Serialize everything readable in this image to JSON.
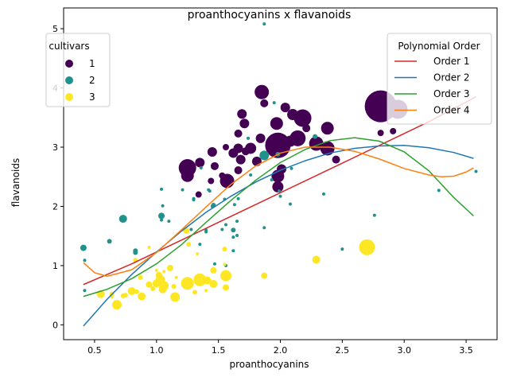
{
  "chart_data": {
    "type": "scatter",
    "title": "proanthocyanins x flavanoids",
    "xlabel": "proanthocyanins",
    "ylabel": "flavanoids",
    "xlim": [
      0.25,
      3.75
    ],
    "ylim": [
      -0.25,
      5.35
    ],
    "xticks": [
      "0.5",
      "1.0",
      "1.5",
      "2.0",
      "2.5",
      "3.0",
      "3.5"
    ],
    "yticks": [
      "0",
      "1",
      "2",
      "3",
      "4",
      "5"
    ],
    "grid": false,
    "hue_legend": {
      "title": "cultivars",
      "placement": "top-left",
      "entries": [
        {
          "label": "1",
          "color": "#440154"
        },
        {
          "label": "2",
          "color": "#21918c"
        },
        {
          "label": "3",
          "color": "#fde725"
        }
      ]
    },
    "fit_legend": {
      "title": "Polynomial Order",
      "placement": "top-right",
      "entries": [
        {
          "label": "Order 1",
          "color": "#d62728"
        },
        {
          "label": "Order 2",
          "color": "#1f77b4"
        },
        {
          "label": "Order 3",
          "color": "#2ca02c"
        },
        {
          "label": "Order 4",
          "color": "#ff7f0e"
        }
      ]
    },
    "fit_lines": [
      {
        "name": "Order 1",
        "x": [
          0.41,
          0.8,
          1.2,
          1.6,
          2.0,
          2.4,
          2.8,
          3.2,
          3.58
        ],
        "y": [
          0.68,
          1.03,
          1.43,
          1.83,
          2.23,
          2.63,
          3.03,
          3.43,
          3.85
        ]
      },
      {
        "name": "Order 2",
        "x": [
          0.41,
          0.6,
          0.8,
          1.0,
          1.2,
          1.4,
          1.6,
          1.8,
          2.0,
          2.2,
          2.4,
          2.6,
          2.8,
          3.0,
          3.2,
          3.4,
          3.56
        ],
        "y": [
          -0.02,
          0.43,
          0.85,
          1.23,
          1.58,
          1.9,
          2.17,
          2.41,
          2.61,
          2.77,
          2.9,
          2.98,
          3.02,
          3.03,
          2.99,
          2.91,
          2.81
        ]
      },
      {
        "name": "Order 3",
        "x": [
          0.41,
          0.6,
          0.8,
          1.0,
          1.2,
          1.4,
          1.6,
          1.8,
          2.0,
          2.2,
          2.4,
          2.6,
          2.8,
          3.0,
          3.2,
          3.4,
          3.56
        ],
        "y": [
          0.48,
          0.6,
          0.78,
          1.03,
          1.35,
          1.73,
          2.1,
          2.44,
          2.74,
          2.96,
          3.11,
          3.16,
          3.1,
          2.92,
          2.6,
          2.15,
          1.84
        ]
      },
      {
        "name": "Order 4",
        "x": [
          0.41,
          0.5,
          0.6,
          0.8,
          1.0,
          1.2,
          1.4,
          1.6,
          1.8,
          2.0,
          2.2,
          2.4,
          2.6,
          2.8,
          3.0,
          3.2,
          3.3,
          3.4,
          3.5,
          3.56
        ],
        "y": [
          1.05,
          0.88,
          0.82,
          0.93,
          1.22,
          1.6,
          1.99,
          2.37,
          2.68,
          2.9,
          3.0,
          3.0,
          2.93,
          2.8,
          2.64,
          2.53,
          2.5,
          2.51,
          2.58,
          2.65
        ]
      }
    ],
    "series": [
      {
        "name": "1",
        "color": "#440154",
        "points": [
          [
            2.81,
            3.69,
            20
          ],
          [
            2.95,
            3.64,
            12
          ],
          [
            1.85,
            3.93,
            9
          ],
          [
            2.18,
            3.49,
            11
          ],
          [
            2.14,
            3.15,
            10
          ],
          [
            2.29,
            3.06,
            9
          ],
          [
            2.38,
            2.98,
            9
          ],
          [
            1.97,
            3.4,
            8
          ],
          [
            1.98,
            3.03,
            16
          ],
          [
            2.08,
            3.1,
            7
          ],
          [
            2.1,
            3.55,
            7
          ],
          [
            1.69,
            3.56,
            6
          ],
          [
            1.71,
            3.4,
            6
          ],
          [
            1.66,
            3.23,
            5
          ],
          [
            1.76,
            2.98,
            7
          ],
          [
            1.84,
            3.15,
            6
          ],
          [
            2.04,
            3.67,
            6
          ],
          [
            2.38,
            3.32,
            8
          ],
          [
            1.57,
            2.43,
            9
          ],
          [
            1.25,
            2.65,
            11
          ],
          [
            1.25,
            2.52,
            8
          ],
          [
            1.35,
            2.74,
            6
          ],
          [
            1.45,
            2.92,
            6
          ],
          [
            1.47,
            2.68,
            5
          ],
          [
            1.62,
            2.9,
            6
          ],
          [
            1.66,
            2.98,
            6
          ],
          [
            1.68,
            2.79,
            6
          ],
          [
            1.81,
            2.76,
            6
          ],
          [
            1.98,
            2.51,
            8
          ],
          [
            1.98,
            2.33,
            7
          ],
          [
            2.01,
            2.63,
            6
          ],
          [
            2.45,
            2.79,
            5
          ],
          [
            2.81,
            3.24,
            4
          ],
          [
            2.91,
            3.27,
            4
          ],
          [
            1.34,
            2.2,
            4
          ],
          [
            1.44,
            2.43,
            4
          ],
          [
            1.53,
            2.52,
            4
          ],
          [
            1.66,
            2.61,
            5
          ],
          [
            1.87,
            3.74,
            5
          ],
          [
            1.72,
            2.93,
            5
          ],
          [
            1.56,
            3.0,
            4
          ],
          [
            2.21,
            3.32,
            5
          ]
        ]
      },
      {
        "name": "2",
        "color": "#21918c",
        "points": [
          [
            1.87,
            2.86,
            6
          ],
          [
            0.73,
            1.79,
            5
          ],
          [
            1.04,
            1.84,
            4
          ],
          [
            0.41,
            1.3,
            4
          ],
          [
            1.46,
            2.02,
            3
          ],
          [
            1.21,
            2.28,
            2
          ],
          [
            0.62,
            1.41,
            3
          ],
          [
            1.87,
            5.08,
            2
          ],
          [
            1.3,
            2.13,
            2
          ],
          [
            1.62,
            1.6,
            3
          ],
          [
            1.62,
            1.48,
            2
          ],
          [
            1.98,
            2.88,
            3
          ],
          [
            2.28,
            3.18,
            3
          ],
          [
            2.09,
            2.64,
            2
          ],
          [
            1.35,
            1.36,
            2
          ],
          [
            1.45,
            2.0,
            2
          ],
          [
            1.65,
            1.75,
            2
          ],
          [
            0.83,
            1.22,
            3
          ],
          [
            1.56,
            1.69,
            2
          ],
          [
            1.1,
            1.75,
            2
          ],
          [
            1.42,
            2.28,
            2
          ],
          [
            2.76,
            1.85,
            2
          ],
          [
            1.74,
            3.15,
            2
          ],
          [
            1.99,
            2.26,
            2
          ],
          [
            1.4,
            1.57,
            2
          ],
          [
            2.5,
            1.28,
            2
          ],
          [
            2.35,
            2.21,
            2
          ],
          [
            1.63,
            2.03,
            2
          ],
          [
            1.87,
            1.64,
            2
          ],
          [
            1.04,
            2.29,
            2
          ],
          [
            3.28,
            2.27,
            2
          ],
          [
            3.58,
            2.59,
            2
          ],
          [
            1.62,
            1.25,
            2
          ],
          [
            1.36,
            2.65,
            2
          ],
          [
            1.55,
            2.12,
            2
          ],
          [
            1.53,
            1.61,
            2
          ],
          [
            1.28,
            1.61,
            2
          ],
          [
            1.65,
            1.51,
            2
          ],
          [
            0.83,
            1.25,
            3
          ],
          [
            1.95,
            3.75,
            2
          ],
          [
            2.08,
            2.04,
            2
          ],
          [
            1.43,
            2.26,
            2
          ],
          [
            0.42,
            1.09,
            2
          ],
          [
            1.76,
            2.53,
            2
          ],
          [
            1.66,
            2.13,
            2
          ],
          [
            1.93,
            2.45,
            2
          ],
          [
            1.05,
            2.01,
            2
          ],
          [
            0.42,
            0.58,
            2
          ],
          [
            1.3,
            2.11,
            2
          ],
          [
            1.47,
            1.03,
            2
          ],
          [
            1.56,
            1.0,
            2
          ],
          [
            2.0,
            2.17,
            2
          ],
          [
            1.04,
            1.77,
            2
          ],
          [
            1.4,
            1.6,
            2
          ]
        ]
      },
      {
        "name": "3",
        "color": "#fde725",
        "points": [
          [
            2.7,
            1.31,
            10
          ],
          [
            1.25,
            0.7,
            8
          ],
          [
            1.35,
            0.76,
            8
          ],
          [
            1.56,
            0.83,
            7
          ],
          [
            0.68,
            0.34,
            6
          ],
          [
            1.03,
            0.76,
            6
          ],
          [
            1.06,
            0.66,
            6
          ],
          [
            1.15,
            0.47,
            6
          ],
          [
            0.55,
            0.52,
            5
          ],
          [
            0.8,
            0.57,
            5
          ],
          [
            0.88,
            0.48,
            5
          ],
          [
            1.0,
            0.7,
            5
          ],
          [
            1.05,
            0.6,
            5
          ],
          [
            1.41,
            0.75,
            5
          ],
          [
            1.46,
            0.69,
            5
          ],
          [
            2.29,
            1.1,
            5
          ],
          [
            1.87,
            0.83,
            4
          ],
          [
            1.11,
            0.96,
            4
          ],
          [
            1.46,
            0.92,
            4
          ],
          [
            1.56,
            0.63,
            4
          ],
          [
            1.24,
            1.59,
            4
          ],
          [
            0.94,
            0.68,
            4
          ],
          [
            1.02,
            0.84,
            4
          ],
          [
            0.75,
            0.5,
            3
          ],
          [
            0.83,
            1.09,
            3
          ],
          [
            0.97,
            0.61,
            3
          ],
          [
            1.31,
            0.55,
            3
          ],
          [
            1.55,
            1.28,
            3
          ],
          [
            1.14,
            0.65,
            3
          ],
          [
            1.26,
            1.36,
            3
          ],
          [
            0.73,
            0.49,
            3
          ],
          [
            0.64,
            0.52,
            3
          ],
          [
            0.84,
            0.56,
            3
          ],
          [
            0.87,
            0.8,
            3
          ],
          [
            0.94,
            1.31,
            2
          ],
          [
            1.06,
            0.9,
            2
          ],
          [
            1.16,
            0.8,
            2
          ],
          [
            1.4,
            0.58,
            2
          ],
          [
            1.55,
            1.02,
            2
          ],
          [
            0.64,
            0.47,
            2
          ],
          [
            1.0,
            0.92,
            2
          ],
          [
            1.33,
            1.2,
            2
          ]
        ]
      }
    ]
  }
}
